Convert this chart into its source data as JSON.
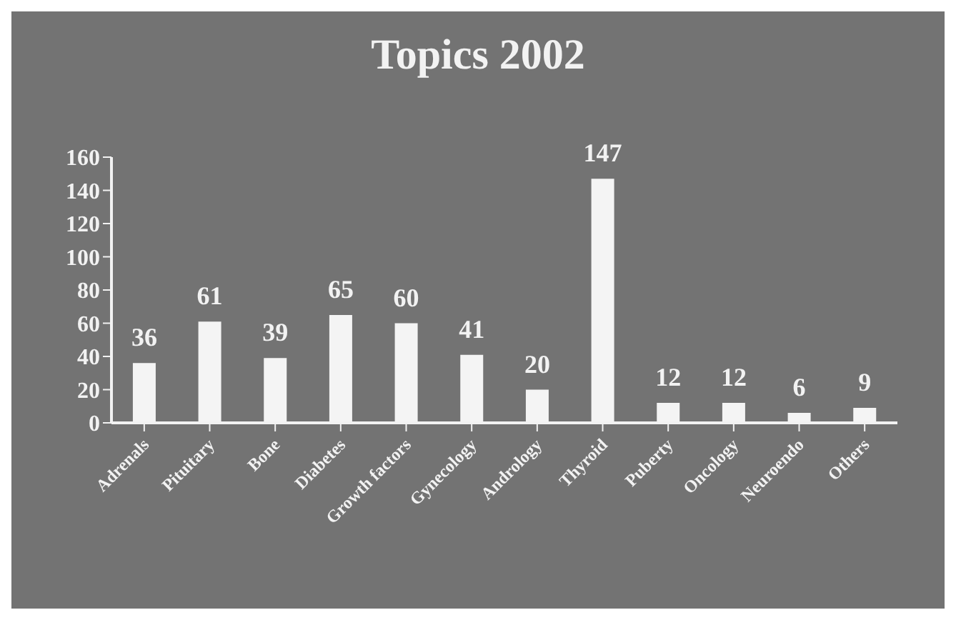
{
  "chart_data": {
    "type": "bar",
    "title": "Topics 2002",
    "categories": [
      "Adrenals",
      "Pituitary",
      "Bone",
      "Diabetes",
      "Growth factors",
      "Gynecology",
      "Andrology",
      "Thyroid",
      "Puberty",
      "Oncology",
      "Neuroendo",
      "Others"
    ],
    "values": [
      36,
      61,
      39,
      65,
      60,
      41,
      20,
      147,
      12,
      12,
      6,
      9
    ],
    "color": "#f4f4f4",
    "ylim": [
      0,
      160
    ],
    "yticks": [
      0,
      20,
      40,
      60,
      80,
      100,
      120,
      140,
      160
    ],
    "grid": false,
    "data_labels": true
  }
}
